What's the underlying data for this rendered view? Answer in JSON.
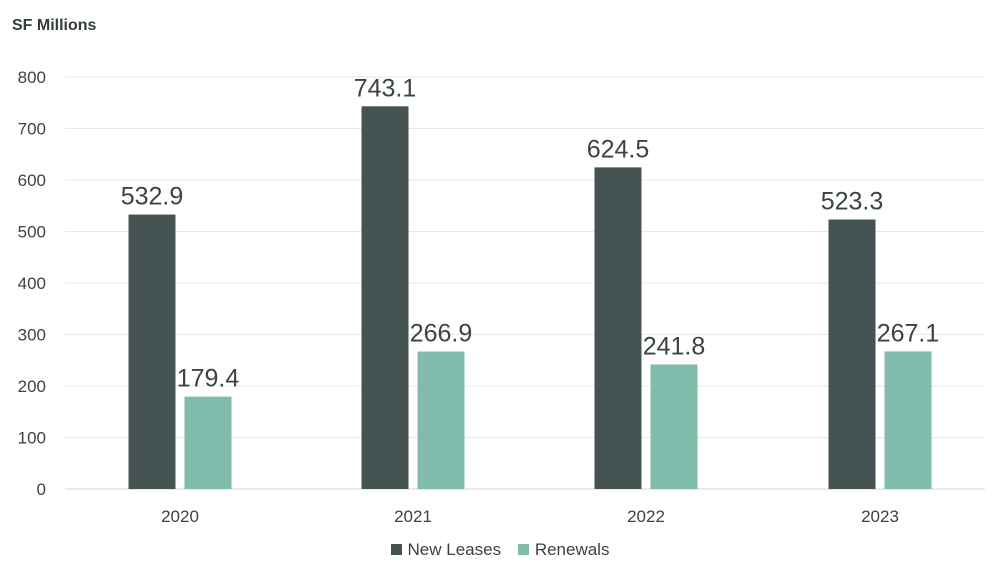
{
  "chart_data": {
    "type": "bar",
    "title": "",
    "ylabel": "SF Millions",
    "xlabel": "",
    "categories": [
      "2020",
      "2021",
      "2022",
      "2023"
    ],
    "series": [
      {
        "name": "New Leases",
        "values": [
          532.9,
          743.1,
          624.5,
          523.3
        ],
        "color": "#455352"
      },
      {
        "name": "Renewals",
        "values": [
          179.4,
          266.9,
          241.8,
          267.1
        ],
        "color": "#80bbab"
      }
    ],
    "ylim": [
      0,
      800
    ],
    "yticks": [
      0,
      100,
      200,
      300,
      400,
      500,
      600,
      700,
      800
    ],
    "grid": true,
    "legend_position": "bottom-center",
    "value_labels": [
      "532.9",
      "743.1",
      "624.5",
      "523.3",
      "179.4",
      "266.9",
      "241.8",
      "267.1"
    ]
  }
}
